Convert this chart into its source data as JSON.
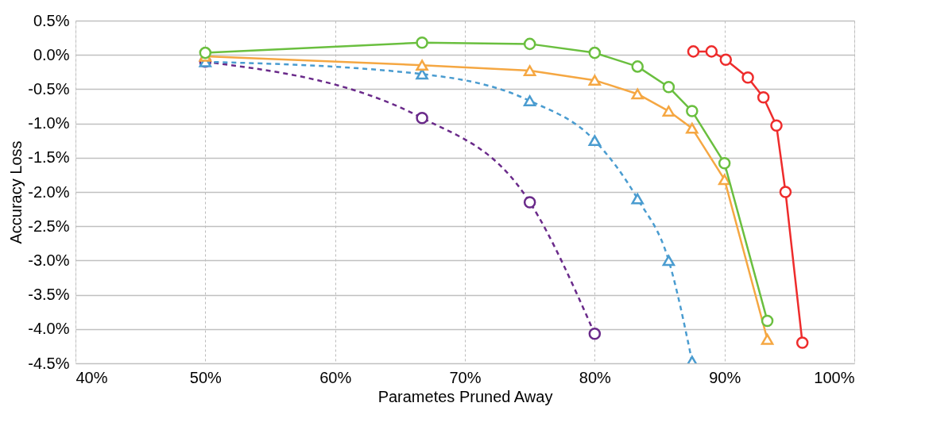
{
  "chart_data": {
    "type": "line",
    "xlabel": "Parametes Pruned Away",
    "ylabel": "Accuracy Loss",
    "xlim": [
      40,
      100
    ],
    "ylim": [
      -4.5,
      0.5
    ],
    "xticks": [
      {
        "value": 40,
        "label": "40%"
      },
      {
        "value": 50,
        "label": "50%"
      },
      {
        "value": 60,
        "label": "60%"
      },
      {
        "value": 70,
        "label": "70%"
      },
      {
        "value": 80,
        "label": "80%"
      },
      {
        "value": 90,
        "label": "90%"
      },
      {
        "value": 100,
        "label": "100%"
      }
    ],
    "yticks": [
      {
        "value": 0.5,
        "label": "0.5%"
      },
      {
        "value": 0,
        "label": "0.0%"
      },
      {
        "value": -0.5,
        "label": "-0.5%"
      },
      {
        "value": -1,
        "label": "-1.0%"
      },
      {
        "value": -1.5,
        "label": "-1.5%"
      },
      {
        "value": -2,
        "label": "-2.0%"
      },
      {
        "value": -2.5,
        "label": "-2.5%"
      },
      {
        "value": -3,
        "label": "-3.0%"
      },
      {
        "value": -3.5,
        "label": "-3.5%"
      },
      {
        "value": -4,
        "label": "-4.0%"
      },
      {
        "value": -4.5,
        "label": "-4.5%"
      }
    ],
    "grid": true,
    "series": [
      {
        "color": "#6a2a8a",
        "line_style": "dashed",
        "marker": "circle",
        "x": [
          50,
          66.7,
          75,
          80
        ],
        "values": [
          -0.1,
          -0.92,
          -2.15,
          -4.07
        ]
      },
      {
        "color": "#4a9cd0",
        "line_style": "dashed",
        "marker": "triangle",
        "x": [
          50,
          66.7,
          75,
          80,
          83.3,
          85.7,
          87.5
        ],
        "values": [
          -0.1,
          -0.28,
          -0.67,
          -1.25,
          -2.1,
          -3.0,
          -4.47
        ]
      },
      {
        "color": "#f5a742",
        "line_style": "solid",
        "marker": "triangle",
        "x": [
          50,
          66.7,
          75,
          80,
          83.3,
          85.7,
          87.5,
          90,
          93.3
        ],
        "values": [
          -0.02,
          -0.15,
          -0.23,
          -0.37,
          -0.57,
          -0.82,
          -1.07,
          -1.82,
          -4.15
        ]
      },
      {
        "color": "#6abf3f",
        "line_style": "solid",
        "marker": "circle",
        "x": [
          50,
          66.7,
          75,
          80,
          83.3,
          85.7,
          87.5,
          90,
          93.3
        ],
        "values": [
          0.03,
          0.18,
          0.16,
          0.03,
          -0.17,
          -0.47,
          -0.82,
          -1.58,
          -3.88
        ]
      },
      {
        "color": "#ee2c2c",
        "line_style": "solid",
        "marker": "circle",
        "x": [
          87.6,
          89,
          90.1,
          91.8,
          93,
          94,
          94.7,
          96
        ],
        "values": [
          0.05,
          0.05,
          -0.07,
          -0.33,
          -0.62,
          -1.03,
          -2.0,
          -4.2
        ]
      }
    ]
  }
}
